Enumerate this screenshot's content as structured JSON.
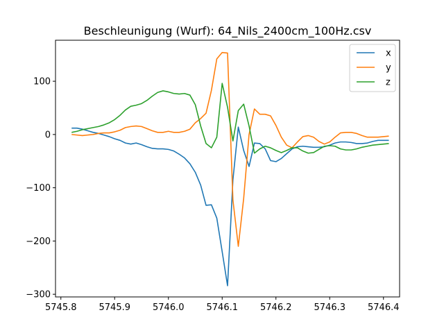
{
  "chart_data": {
    "type": "line",
    "title": "Beschleunigung (Wurf): 64_Nils_2400cm_100Hz.csv",
    "xlabel": "",
    "ylabel": "",
    "xlim": [
      5745.79,
      5746.43
    ],
    "ylim": [
      -305,
      177
    ],
    "xticks": [
      5745.8,
      5745.9,
      5746.0,
      5746.1,
      5746.2,
      5746.3,
      5746.4
    ],
    "xtick_labels": [
      "5745.8",
      "5745.9",
      "5746.0",
      "5746.1",
      "5746.2",
      "5746.3",
      "5746.4"
    ],
    "yticks": [
      100,
      0,
      -100,
      -200,
      -300
    ],
    "ytick_labels": [
      "100",
      "0",
      "−100",
      "−200",
      "−300"
    ],
    "grid": false,
    "legend_position": "top-right",
    "x": [
      5745.82,
      5745.83,
      5745.84,
      5745.85,
      5745.86,
      5745.87,
      5745.88,
      5745.89,
      5745.9,
      5745.91,
      5745.92,
      5745.93,
      5745.94,
      5745.95,
      5745.96,
      5745.97,
      5745.98,
      5745.99,
      5746.0,
      5746.01,
      5746.02,
      5746.03,
      5746.04,
      5746.05,
      5746.06,
      5746.07,
      5746.08,
      5746.09,
      5746.1,
      5746.11,
      5746.12,
      5746.13,
      5746.14,
      5746.15,
      5746.16,
      5746.17,
      5746.18,
      5746.19,
      5746.2,
      5746.21,
      5746.22,
      5746.23,
      5746.24,
      5746.25,
      5746.26,
      5746.27,
      5746.28,
      5746.29,
      5746.3,
      5746.31,
      5746.32,
      5746.33,
      5746.34,
      5746.35,
      5746.36,
      5746.37,
      5746.38,
      5746.39,
      5746.4,
      5746.41
    ],
    "series": [
      {
        "name": "x",
        "color": "#1f77b4",
        "values": [
          12,
          12,
          10,
          7,
          4,
          2,
          -1,
          -4,
          -8,
          -11,
          -16,
          -18,
          -16,
          -19,
          -23,
          -26,
          -27,
          -27,
          -28,
          -31,
          -37,
          -44,
          -55,
          -71,
          -95,
          -133,
          -132,
          -157,
          -220,
          -284,
          -85,
          14,
          -30,
          -60,
          -16,
          -17,
          -27,
          -49,
          -51,
          -45,
          -36,
          -27,
          -23,
          -22,
          -23,
          -24,
          -24,
          -23,
          -20,
          -16,
          -14,
          -14,
          -15,
          -17,
          -17,
          -16,
          -13,
          -11,
          -11,
          -11
        ]
      },
      {
        "name": "y",
        "color": "#ff7f0e",
        "values": [
          0,
          -1,
          -2,
          -1,
          0,
          2,
          3,
          3,
          5,
          8,
          13,
          15,
          16,
          15,
          11,
          7,
          4,
          4,
          6,
          4,
          4,
          6,
          10,
          22,
          30,
          40,
          83,
          142,
          154,
          153,
          -123,
          -210,
          -120,
          0,
          48,
          38,
          38,
          35,
          17,
          -5,
          -20,
          -25,
          -14,
          -4,
          -2,
          -5,
          -13,
          -18,
          -14,
          -5,
          3,
          4,
          4,
          2,
          -2,
          -5,
          -5,
          -5,
          -4,
          -3
        ]
      },
      {
        "name": "z",
        "color": "#2ca02c",
        "values": [
          4,
          6,
          9,
          11,
          13,
          15,
          18,
          22,
          28,
          36,
          46,
          53,
          55,
          58,
          64,
          72,
          79,
          82,
          80,
          77,
          76,
          77,
          74,
          56,
          16,
          -17,
          -25,
          -5,
          96,
          51,
          -12,
          45,
          57,
          16,
          -35,
          -27,
          -22,
          -25,
          -30,
          -34,
          -30,
          -25,
          -25,
          -31,
          -35,
          -34,
          -28,
          -22,
          -21,
          -22,
          -27,
          -29,
          -29,
          -27,
          -24,
          -22,
          -20,
          -19,
          -18,
          -17
        ]
      }
    ]
  }
}
